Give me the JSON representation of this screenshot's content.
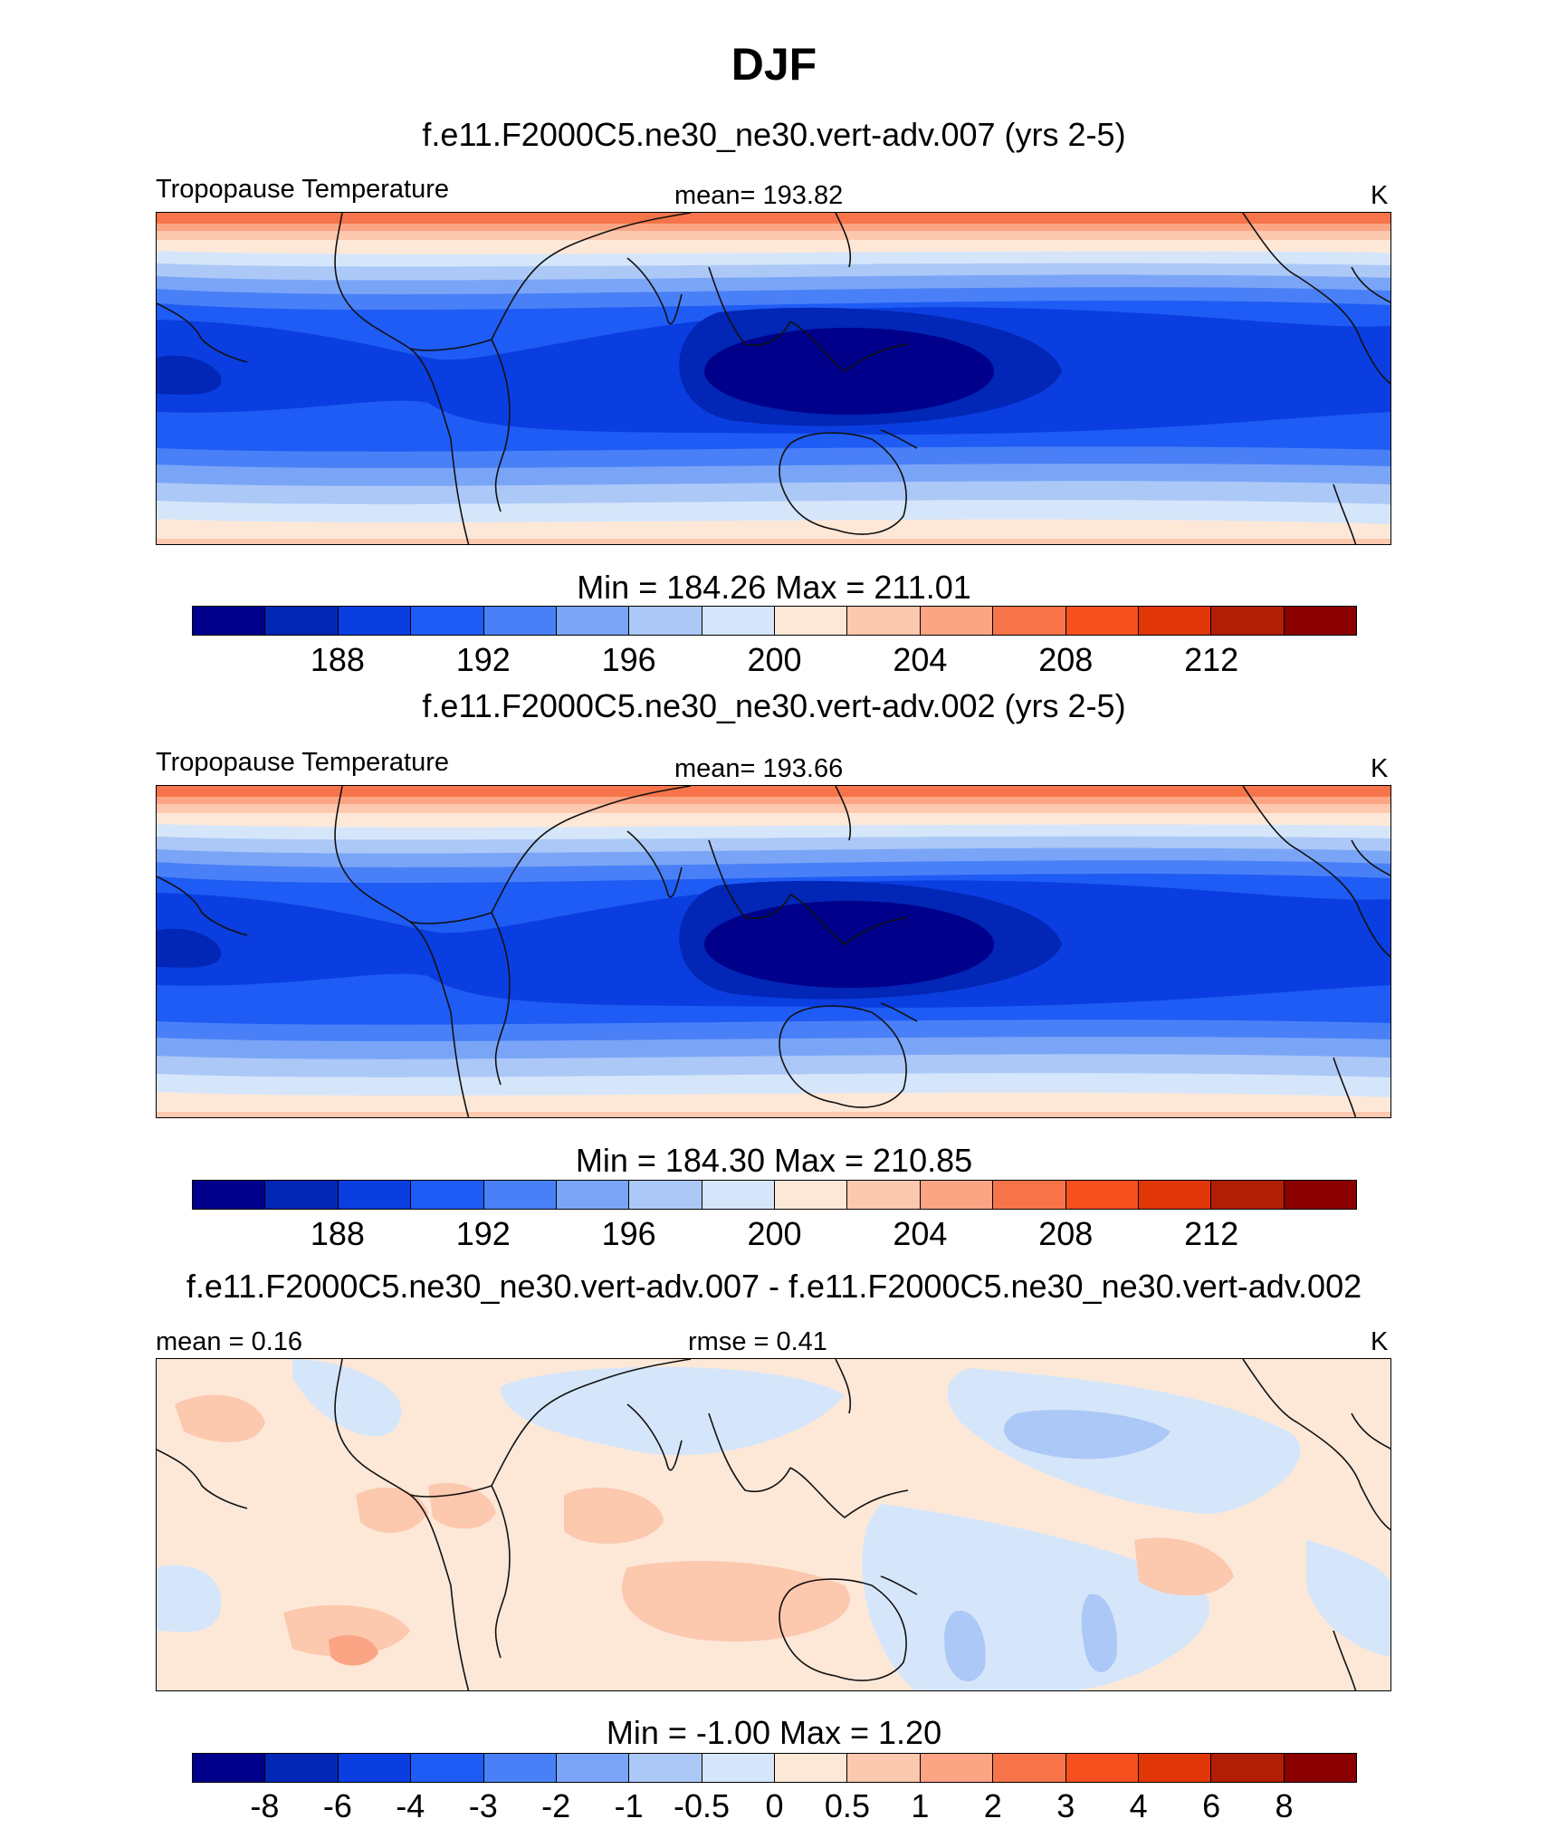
{
  "figure": {
    "title": "DJF"
  },
  "panels": [
    {
      "case_title": "f.e11.F2000C5.ne30_ne30.vert-adv.007 (yrs 2-5)",
      "left_label": "Tropopause Temperature",
      "center_label": "mean= 193.82",
      "units": "K",
      "stats": "Min = 184.26 Max = 211.01",
      "colorbar_ticks": [
        "188",
        "192",
        "196",
        "200",
        "204",
        "208",
        "212"
      ]
    },
    {
      "case_title": "f.e11.F2000C5.ne30_ne30.vert-adv.002 (yrs 2-5)",
      "left_label": "Tropopause Temperature",
      "center_label": "mean= 193.66",
      "units": "K",
      "stats": "Min = 184.30 Max = 210.85",
      "colorbar_ticks": [
        "188",
        "192",
        "196",
        "200",
        "204",
        "208",
        "212"
      ]
    },
    {
      "case_title": "f.e11.F2000C5.ne30_ne30.vert-adv.007 - f.e11.F2000C5.ne30_ne30.vert-adv.002",
      "left_label": "mean =   0.16",
      "center_label": "rmse =   0.41",
      "units": "K",
      "stats": "Min =  -1.00 Max =    1.20",
      "colorbar_ticks": [
        "-8",
        "-6",
        "-4",
        "-3",
        "-2",
        "-1",
        "-0.5",
        "0",
        "0.5",
        "1",
        "2",
        "3",
        "4",
        "6",
        "8"
      ]
    }
  ],
  "colors": {
    "palette": [
      "#00008b",
      "#0226b5",
      "#0a3ee0",
      "#1e5cf5",
      "#4a80f7",
      "#7aa5f7",
      "#acc8f7",
      "#d6e6fa",
      "#fde8d8",
      "#fcc8ae",
      "#fba585",
      "#f7744a",
      "#f5501e",
      "#e03608",
      "#b01e06",
      "#8b0000"
    ],
    "coast": "#111111"
  }
}
